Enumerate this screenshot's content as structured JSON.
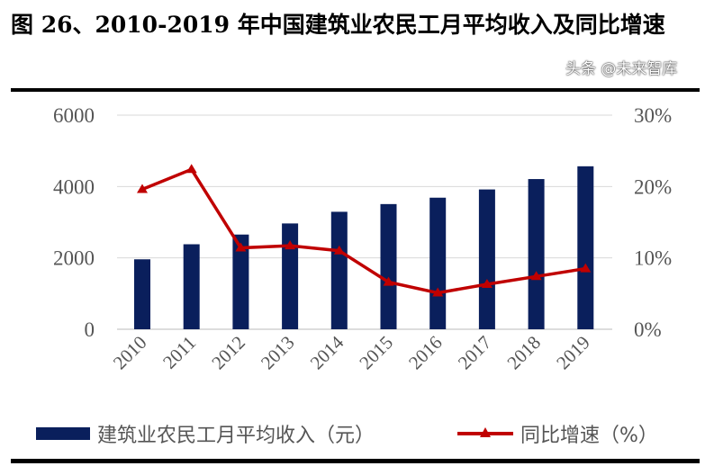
{
  "title": "图 26、2010-2019 年中国建筑业农民工月平均收入及同比增速",
  "watermark": "头条 @未来智库",
  "chart_data": {
    "type": "bar+line",
    "title": "图 26、2010-2019 年中国建筑业农民工月平均收入及同比增速",
    "categories": [
      "2010",
      "2011",
      "2012",
      "2013",
      "2014",
      "2015",
      "2016",
      "2017",
      "2018",
      "2019"
    ],
    "series": [
      {
        "name": "建筑业农民工月平均收入（元）",
        "type": "bar",
        "axis": "left",
        "color": "#0a1f5c",
        "values": [
          1960,
          2382,
          2654,
          2965,
          3292,
          3508,
          3687,
          3918,
          4209,
          4567
        ]
      },
      {
        "name": "同比增速（%）",
        "type": "line",
        "axis": "right",
        "color": "#c00000",
        "values": [
          19.6,
          22.4,
          11.4,
          11.7,
          11.0,
          6.6,
          5.1,
          6.3,
          7.4,
          8.5
        ]
      }
    ],
    "left_axis": {
      "ylim": [
        0,
        6000
      ],
      "ticks": [
        "0",
        "2000",
        "4000",
        "6000"
      ]
    },
    "right_axis": {
      "ylim": [
        0,
        30
      ],
      "ticks": [
        "0%",
        "10%",
        "20%",
        "30%"
      ]
    },
    "grid": true,
    "legend": "bottom"
  }
}
